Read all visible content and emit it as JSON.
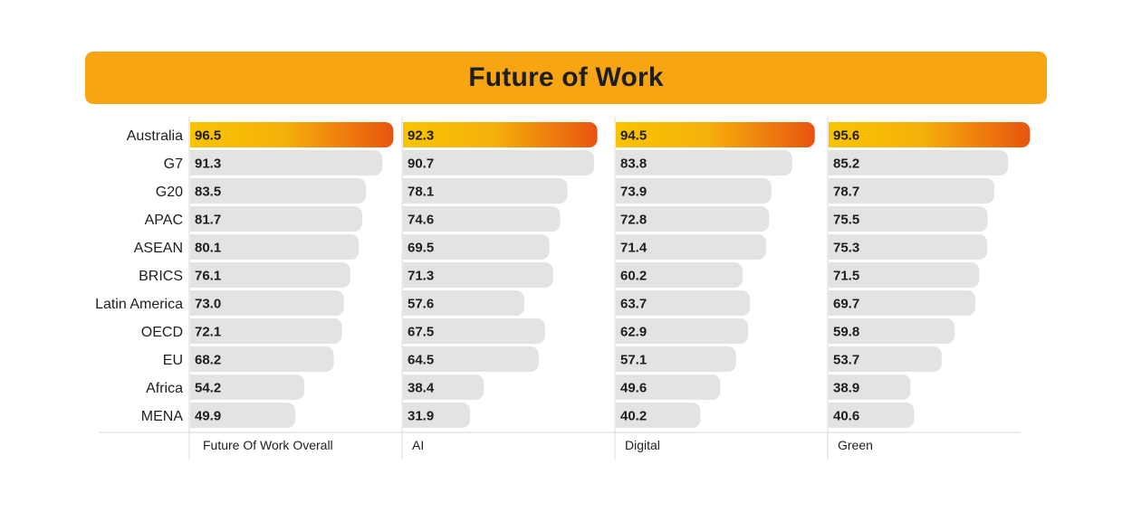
{
  "chart_data": {
    "type": "bar",
    "title": "Future of Work",
    "orientation": "horizontal",
    "categories": [
      "Australia",
      "G7",
      "G20",
      "APAC",
      "ASEAN",
      "BRICS",
      "Latin America",
      "OECD",
      "EU",
      "Africa",
      "MENA"
    ],
    "series": [
      {
        "name": "Future Of Work Overall",
        "values": [
          96.5,
          91.3,
          83.5,
          81.7,
          80.1,
          76.1,
          73.0,
          72.1,
          68.2,
          54.2,
          49.9
        ],
        "labels": [
          "96.5",
          "91.3",
          "83.5",
          "81.7",
          "80.1",
          "76.1",
          "73.0",
          "72.1",
          "68.2",
          "54.2",
          "49.9"
        ]
      },
      {
        "name": "AI",
        "values": [
          92.3,
          90.7,
          78.1,
          74.6,
          69.5,
          71.3,
          57.6,
          67.5,
          64.5,
          38.4,
          31.9
        ],
        "labels": [
          "92.3",
          "90.7",
          "78.1",
          "74.6",
          "69.5",
          "71.3",
          "57.6",
          "67.5",
          "64.5",
          "38.4",
          "31.9"
        ]
      },
      {
        "name": "Digital",
        "values": [
          94.5,
          83.8,
          73.9,
          72.8,
          71.4,
          60.2,
          63.7,
          62.9,
          57.1,
          49.6,
          40.2
        ],
        "labels": [
          "94.5",
          "83.8",
          "73.9",
          "72.8",
          "71.4",
          "60.2",
          "63.7",
          "62.9",
          "57.1",
          "49.6",
          "40.2"
        ]
      },
      {
        "name": "Green",
        "values": [
          95.6,
          85.2,
          78.7,
          75.5,
          75.3,
          71.5,
          69.7,
          59.8,
          53.7,
          38.9,
          40.6
        ],
        "labels": [
          "95.6",
          "85.2",
          "78.7",
          "75.5",
          "75.3",
          "71.5",
          "69.7",
          "59.8",
          "53.7",
          "38.9",
          "40.6"
        ]
      }
    ],
    "highlight_category": "Australia",
    "colors": {
      "banner": "#f7a513",
      "highlight_start": "#f9c300",
      "highlight_end": "#e8540e",
      "bar": "#e4e3e4",
      "grid": "#d9d9d9"
    }
  }
}
